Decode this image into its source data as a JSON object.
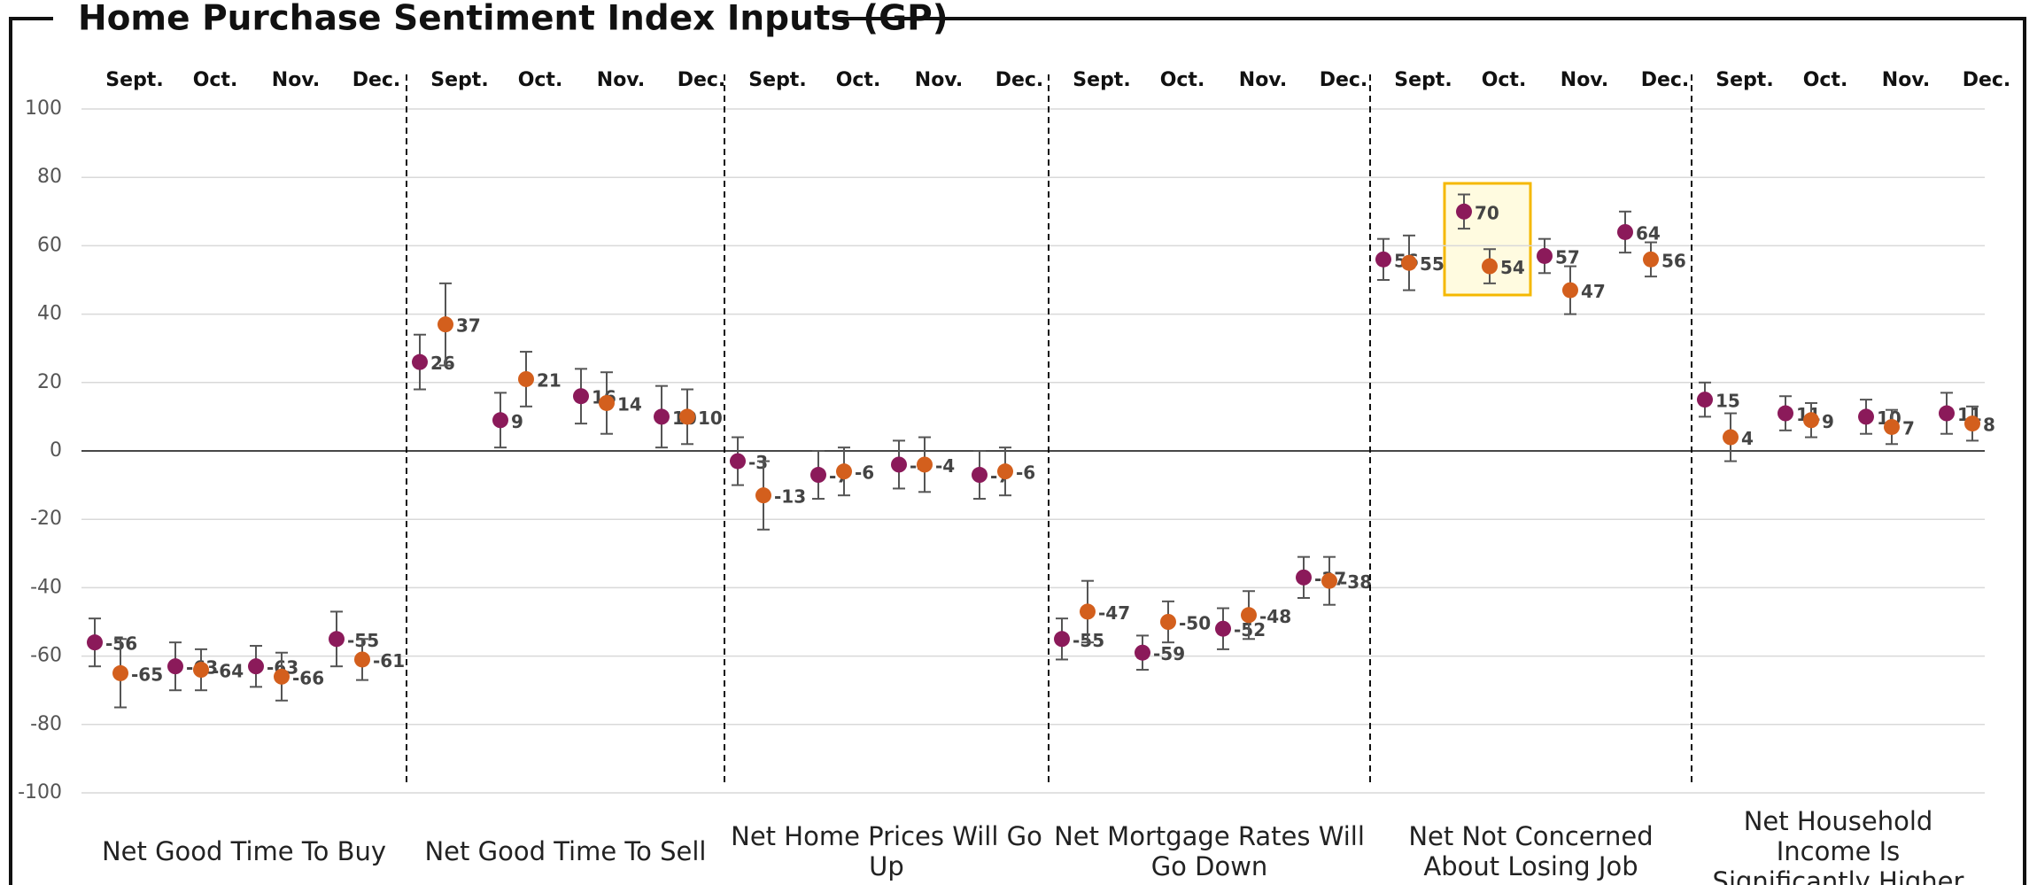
{
  "chart_data": {
    "type": "dot-errorbar",
    "title": "Home Purchase Sentiment Index Inputs (GP)",
    "ylim": [
      -100,
      100
    ],
    "yticks": [
      -100,
      -80,
      -60,
      -40,
      -20,
      0,
      20,
      40,
      60,
      80,
      100
    ],
    "grid": true,
    "months": [
      "Sept.",
      "Oct.",
      "Nov.",
      "Dec."
    ],
    "panels": [
      {
        "label": "Net Good Time To Buy",
        "series": [
          {
            "color": "#8b1a5a",
            "values": [
              -56,
              -63,
              -63,
              -55
            ],
            "errors": [
              7,
              7,
              6,
              8
            ]
          },
          {
            "color": "#d35f1d",
            "values": [
              -65,
              -64,
              -66,
              -61
            ],
            "errors": [
              10,
              6,
              7,
              6
            ]
          }
        ]
      },
      {
        "label": "Net Good Time To Sell",
        "series": [
          {
            "color": "#8b1a5a",
            "values": [
              26,
              9,
              16,
              10
            ],
            "errors": [
              8,
              8,
              8,
              9
            ]
          },
          {
            "color": "#d35f1d",
            "values": [
              37,
              21,
              14,
              10
            ],
            "errors": [
              12,
              8,
              9,
              8
            ]
          }
        ]
      },
      {
        "label": "Net Home Prices Will Go Up",
        "series": [
          {
            "color": "#8b1a5a",
            "values": [
              -3,
              -7,
              -4,
              -7
            ],
            "errors": [
              7,
              7,
              7,
              7
            ]
          },
          {
            "color": "#d35f1d",
            "values": [
              -13,
              -6,
              -4,
              -6
            ],
            "errors": [
              10,
              7,
              8,
              7
            ]
          }
        ]
      },
      {
        "label": "Net Mortgage Rates Will Go Down",
        "series": [
          {
            "color": "#8b1a5a",
            "values": [
              -55,
              -59,
              -52,
              -37
            ],
            "errors": [
              6,
              5,
              6,
              6
            ]
          },
          {
            "color": "#d35f1d",
            "values": [
              -47,
              -50,
              -48,
              -38
            ],
            "errors": [
              9,
              6,
              7,
              7
            ]
          }
        ]
      },
      {
        "label": "Net Not Concerned About Losing Job",
        "series": [
          {
            "color": "#8b1a5a",
            "values": [
              56,
              70,
              57,
              64
            ],
            "errors": [
              6,
              5,
              5,
              6
            ]
          },
          {
            "color": "#d35f1d",
            "values": [
              55,
              54,
              47,
              56
            ],
            "errors": [
              8,
              5,
              7,
              5
            ]
          }
        ]
      },
      {
        "label": "Net Household Income Is Significantly Higher",
        "series": [
          {
            "color": "#8b1a5a",
            "values": [
              15,
              11,
              10,
              11
            ],
            "errors": [
              5,
              5,
              5,
              6
            ]
          },
          {
            "color": "#d35f1d",
            "values": [
              4,
              9,
              7,
              8
            ],
            "errors": [
              7,
              5,
              5,
              5
            ]
          }
        ]
      }
    ]
  }
}
